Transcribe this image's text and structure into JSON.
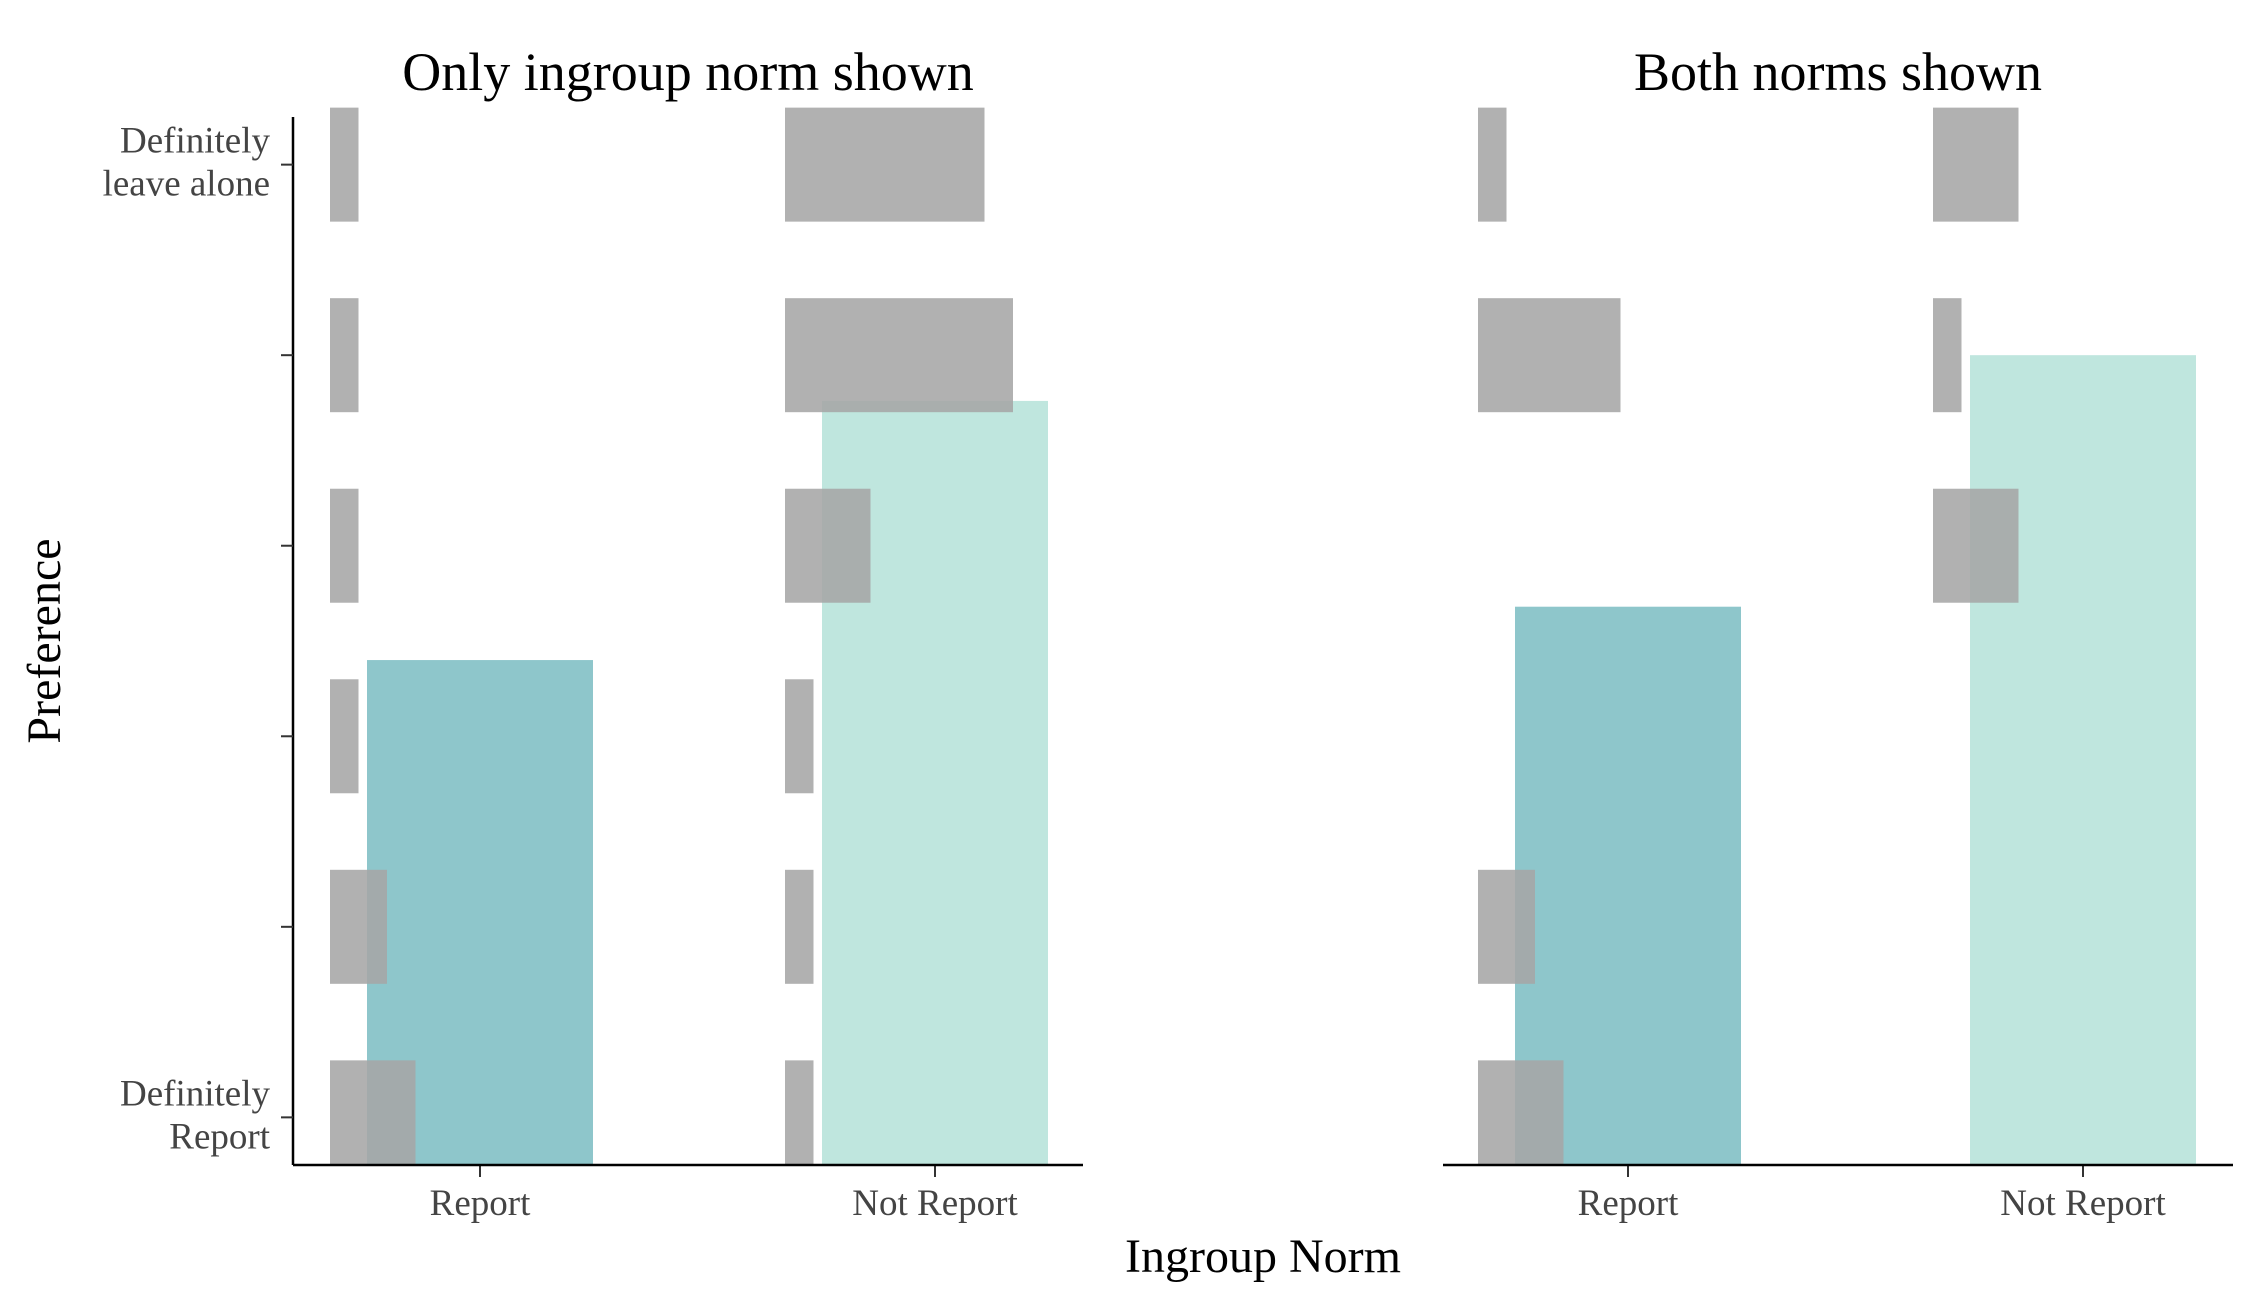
{
  "chart_data": {
    "type": "bar",
    "xlabel": "Ingroup Norm",
    "ylabel": "Preference",
    "categories": [
      "Report",
      "Not Report"
    ],
    "y_levels": 6,
    "ylim": [
      0.75,
      6.25
    ],
    "y_tick_labels": [
      {
        "value": 1,
        "lines": [
          "Definitely",
          "Report"
        ]
      },
      {
        "value": 6,
        "lines": [
          "Definitely",
          "leave alone"
        ]
      }
    ],
    "colors": {
      "Report": "#8ec6cb",
      "Not Report": "#bfe6de",
      "distribution": "#a6a6a6"
    },
    "panels": [
      {
        "title": "Only ingroup norm shown",
        "means": [
          3.4,
          4.76
        ],
        "distribution_widths": {
          "Report": [
            3,
            2,
            1,
            1,
            1,
            1
          ],
          "Not Report": [
            1,
            1,
            1,
            3,
            8,
            7
          ]
        }
      },
      {
        "title": "Both norms shown",
        "means": [
          3.68,
          5.0
        ],
        "distribution_widths": {
          "Report": [
            3,
            2,
            0,
            0,
            5,
            1
          ],
          "Not Report": [
            0,
            0,
            0,
            3,
            1,
            3
          ]
        }
      }
    ]
  }
}
